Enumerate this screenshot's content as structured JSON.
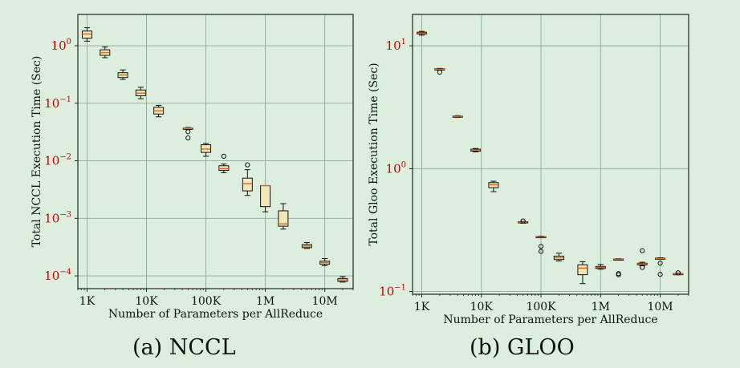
{
  "colors": {
    "background": "#dcefdf",
    "plot_face": "#dcefdf",
    "grid": "#8fa69a",
    "box_fill": "#f5e6b8",
    "median": "#d2691e",
    "decade_label_red": "#cc0000"
  },
  "captions": {
    "a": "(a) NCCL",
    "b": "(b) GLOO"
  },
  "chart_data": [
    {
      "type": "box",
      "xscale": "log",
      "yscale": "log",
      "xlabel": "Number of Parameters per AllReduce",
      "ylabel": "Total NCCL Execution Time (Sec)",
      "xlim": [
        700,
        30000000
      ],
      "ylim": [
        6e-05,
        3.5
      ],
      "xticks": [
        {
          "value": 1000,
          "label": "1K"
        },
        {
          "value": 10000,
          "label": "10K"
        },
        {
          "value": 100000,
          "label": "100K"
        },
        {
          "value": 1000000,
          "label": "1M"
        },
        {
          "value": 10000000,
          "label": "10M"
        }
      ],
      "yticks": [
        {
          "value": 0.0001,
          "base": "10",
          "exp": "−4"
        },
        {
          "value": 0.001,
          "base": "10",
          "exp": "−3"
        },
        {
          "value": 0.01,
          "base": "10",
          "exp": "−2"
        },
        {
          "value": 0.1,
          "base": "10",
          "exp": "−1"
        },
        {
          "value": 1,
          "base": "10",
          "exp": "0"
        }
      ],
      "grid": true,
      "boxes": [
        {
          "x": 1000,
          "wlo": 1.2,
          "q1": 1.35,
          "med": 1.6,
          "q3": 1.8,
          "whi": 2.05,
          "outliers": []
        },
        {
          "x": 2000,
          "wlo": 0.62,
          "q1": 0.68,
          "med": 0.76,
          "q3": 0.85,
          "whi": 0.95,
          "outliers": []
        },
        {
          "x": 4000,
          "wlo": 0.26,
          "q1": 0.28,
          "med": 0.31,
          "q3": 0.34,
          "whi": 0.38,
          "outliers": []
        },
        {
          "x": 8000,
          "wlo": 0.12,
          "q1": 0.135,
          "med": 0.15,
          "q3": 0.17,
          "whi": 0.19,
          "outliers": []
        },
        {
          "x": 16000,
          "wlo": 0.058,
          "q1": 0.065,
          "med": 0.074,
          "q3": 0.085,
          "whi": 0.092,
          "outliers": []
        },
        {
          "x": 50000,
          "wlo": 0.035,
          "q1": 0.036,
          "med": 0.037,
          "q3": 0.037,
          "whi": 0.038,
          "outliers": [
            0.032,
            0.025
          ]
        },
        {
          "x": 100000,
          "wlo": 0.012,
          "q1": 0.014,
          "med": 0.016,
          "q3": 0.019,
          "whi": 0.02,
          "outliers": []
        },
        {
          "x": 200000,
          "wlo": 0.0062,
          "q1": 0.0068,
          "med": 0.0073,
          "q3": 0.0082,
          "whi": 0.0088,
          "outliers": [
            0.012
          ]
        },
        {
          "x": 500000,
          "wlo": 0.0025,
          "q1": 0.003,
          "med": 0.004,
          "q3": 0.005,
          "whi": 0.007,
          "outliers": [
            0.0085
          ]
        },
        {
          "x": 1000000,
          "wlo": 0.0013,
          "q1": 0.0016,
          "med": 0.0037,
          "q3": 0.0037,
          "whi": 0.0037,
          "outliers": []
        },
        {
          "x": 2000000,
          "wlo": 0.00065,
          "q1": 0.00073,
          "med": 0.0008,
          "q3": 0.00135,
          "whi": 0.0018,
          "outliers": []
        },
        {
          "x": 5000000,
          "wlo": 0.0003,
          "q1": 0.00031,
          "med": 0.00033,
          "q3": 0.00035,
          "whi": 0.00038,
          "outliers": []
        },
        {
          "x": 10000000,
          "wlo": 0.00015,
          "q1": 0.00016,
          "med": 0.00017,
          "q3": 0.00018,
          "whi": 0.0002,
          "outliers": []
        },
        {
          "x": 20000000,
          "wlo": 7.8e-05,
          "q1": 8e-05,
          "med": 8.5e-05,
          "q3": 9e-05,
          "whi": 9.7e-05,
          "outliers": []
        }
      ]
    },
    {
      "type": "box",
      "xscale": "log",
      "yscale": "log",
      "xlabel": "Number of Parameters per AllReduce",
      "ylabel": "Total Gloo Execution Time (Sec)",
      "xlim": [
        700,
        30000000
      ],
      "ylim": [
        0.095,
        18
      ],
      "xticks": [
        {
          "value": 1000,
          "label": "1K"
        },
        {
          "value": 10000,
          "label": "10K"
        },
        {
          "value": 100000,
          "label": "100K"
        },
        {
          "value": 1000000,
          "label": "1M"
        },
        {
          "value": 10000000,
          "label": "10M"
        }
      ],
      "yticks": [
        {
          "value": 0.1,
          "base": "10",
          "exp": "−1"
        },
        {
          "value": 1,
          "base": "10",
          "exp": "0"
        },
        {
          "value": 10,
          "base": "10",
          "exp": "1"
        }
      ],
      "grid": true,
      "boxes": [
        {
          "x": 1000,
          "wlo": 12.2,
          "q1": 12.5,
          "med": 12.7,
          "q3": 12.9,
          "whi": 13.1,
          "outliers": []
        },
        {
          "x": 2000,
          "wlo": 6.35,
          "q1": 6.4,
          "med": 6.45,
          "q3": 6.5,
          "whi": 6.55,
          "outliers": [
            6.1
          ]
        },
        {
          "x": 4000,
          "wlo": 2.62,
          "q1": 2.64,
          "med": 2.66,
          "q3": 2.68,
          "whi": 2.7,
          "outliers": []
        },
        {
          "x": 8000,
          "wlo": 1.37,
          "q1": 1.39,
          "med": 1.42,
          "q3": 1.44,
          "whi": 1.46,
          "outliers": []
        },
        {
          "x": 16000,
          "wlo": 0.65,
          "q1": 0.7,
          "med": 0.74,
          "q3": 0.77,
          "whi": 0.79,
          "outliers": []
        },
        {
          "x": 50000,
          "wlo": 0.36,
          "q1": 0.364,
          "med": 0.367,
          "q3": 0.37,
          "whi": 0.372,
          "outliers": [
            0.375
          ]
        },
        {
          "x": 100000,
          "wlo": 0.274,
          "q1": 0.276,
          "med": 0.278,
          "q3": 0.28,
          "whi": 0.282,
          "outliers": [
            0.233,
            0.212
          ]
        },
        {
          "x": 200000,
          "wlo": 0.177,
          "q1": 0.182,
          "med": 0.188,
          "q3": 0.194,
          "whi": 0.205,
          "outliers": []
        },
        {
          "x": 500000,
          "wlo": 0.116,
          "q1": 0.137,
          "med": 0.155,
          "q3": 0.165,
          "whi": 0.175,
          "outliers": []
        },
        {
          "x": 1000000,
          "wlo": 0.152,
          "q1": 0.154,
          "med": 0.157,
          "q3": 0.16,
          "whi": 0.166,
          "outliers": []
        },
        {
          "x": 2000000,
          "wlo": 0.181,
          "q1": 0.182,
          "med": 0.183,
          "q3": 0.184,
          "whi": 0.185,
          "outliers": [
            0.14,
            0.137
          ]
        },
        {
          "x": 5000000,
          "wlo": 0.162,
          "q1": 0.165,
          "med": 0.168,
          "q3": 0.17,
          "whi": 0.173,
          "outliers": [
            0.215,
            0.157
          ]
        },
        {
          "x": 10000000,
          "wlo": 0.183,
          "q1": 0.184,
          "med": 0.185,
          "q3": 0.187,
          "whi": 0.188,
          "outliers": [
            0.17,
            0.138
          ]
        },
        {
          "x": 20000000,
          "wlo": 0.137,
          "q1": 0.138,
          "med": 0.139,
          "q3": 0.14,
          "whi": 0.141,
          "outliers": [
            0.142
          ]
        }
      ]
    }
  ]
}
